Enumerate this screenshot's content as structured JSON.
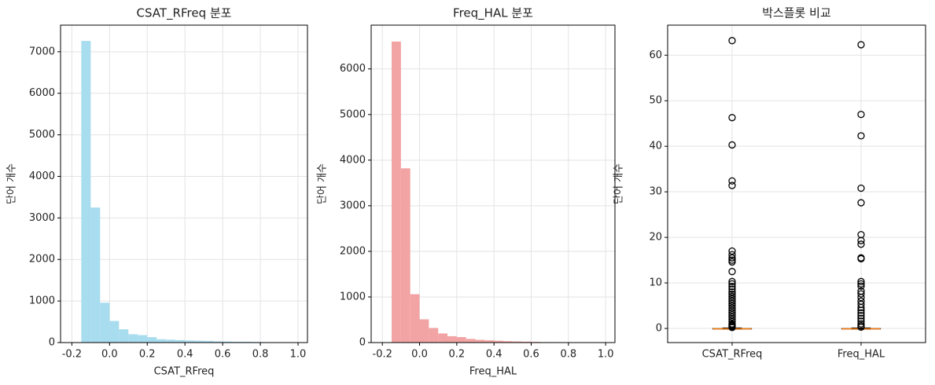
{
  "chart_data": [
    {
      "type": "histogram",
      "title": "CSAT_RFreq 분포",
      "xlabel": "CSAT_RFreq",
      "ylabel": "단어 개수",
      "color": "#a8dcef",
      "bins": [
        -0.15,
        -0.1,
        -0.05,
        0,
        0.05,
        0.1,
        0.15,
        0.2,
        0.25,
        0.3,
        0.35,
        0.4,
        0.45,
        0.5,
        0.55,
        0.6,
        0.65,
        0.7,
        0.75,
        0.8,
        0.85,
        0.9,
        0.95
      ],
      "values": [
        7260,
        3250,
        960,
        520,
        320,
        200,
        180,
        130,
        80,
        70,
        60,
        50,
        45,
        40,
        30,
        25,
        20,
        20,
        15,
        10,
        10,
        5
      ],
      "xlim": [
        -0.26,
        1.05
      ],
      "xticks": [
        -0.2,
        {
          "value": 0,
          "label": "0.0"
        },
        0.2,
        0.4,
        0.6,
        0.8,
        {
          "value": 1,
          "label": "1.0"
        }
      ],
      "ylim": [
        0,
        7640
      ],
      "yticks": [
        0,
        1000,
        2000,
        3000,
        4000,
        5000,
        6000,
        7000
      ],
      "grid": true
    },
    {
      "type": "histogram",
      "title": "Freq_HAL 분포",
      "xlabel": "Freq_HAL",
      "ylabel": "단어 개수",
      "color": "#f2a3a3",
      "bins": [
        -0.15,
        -0.1,
        -0.05,
        0,
        0.05,
        0.1,
        0.15,
        0.2,
        0.25,
        0.3,
        0.35,
        0.4,
        0.45,
        0.5,
        0.55,
        0.6,
        0.65,
        0.7,
        0.75,
        0.8,
        0.85,
        0.9,
        0.95
      ],
      "values": [
        6600,
        3820,
        1060,
        510,
        320,
        200,
        140,
        120,
        80,
        60,
        50,
        40,
        30,
        25,
        20,
        15,
        10,
        10,
        5,
        5,
        3,
        2
      ],
      "xlim": [
        -0.26,
        1.05
      ],
      "xticks": [
        -0.2,
        {
          "value": 0,
          "label": "0.0"
        },
        0.2,
        0.4,
        0.6,
        0.8,
        {
          "value": 1,
          "label": "1.0"
        }
      ],
      "ylim": [
        0,
        6960
      ],
      "yticks": [
        0,
        1000,
        2000,
        3000,
        4000,
        5000,
        6000
      ],
      "grid": true
    },
    {
      "type": "box",
      "title": "박스플롯 비교",
      "ylabel": "단어 개수",
      "categories": [
        "CSAT_RFreq",
        "Freq_HAL"
      ],
      "box_color": "#000000",
      "median_color": "#ff7f0e",
      "boxes": [
        {
          "whislo": -0.15,
          "q1": -0.12,
          "med": -0.09,
          "q3": -0.02,
          "whishi": 0.12,
          "fliers": [
            63.2,
            46.3,
            40.3,
            32.4,
            31.4,
            17,
            16.2,
            15.5,
            15,
            14.6,
            12.5,
            10.3,
            9.8,
            9.2,
            8.6,
            8,
            7.5,
            7,
            6.5,
            6,
            5.5,
            5,
            4.5,
            4,
            3.5,
            3,
            2.5,
            2,
            1.5,
            1,
            0.8,
            0.6,
            0.4,
            0.2
          ]
        },
        {
          "whislo": -0.15,
          "q1": -0.12,
          "med": -0.09,
          "q3": -0.02,
          "whishi": 0.12,
          "fliers": [
            62.3,
            47,
            42.3,
            30.8,
            27.6,
            20.6,
            19.3,
            18.5,
            15.5,
            15.3,
            10.3,
            9.8,
            9.3,
            8.2,
            7.6,
            6.8,
            6,
            5.3,
            4.6,
            4,
            3.4,
            2.8,
            2.2,
            1.6,
            1,
            0.6,
            0.3
          ]
        }
      ],
      "ylim": [
        -3.1,
        66.6
      ],
      "yticks": [
        0,
        10,
        20,
        30,
        40,
        50,
        60
      ],
      "grid": true
    }
  ]
}
